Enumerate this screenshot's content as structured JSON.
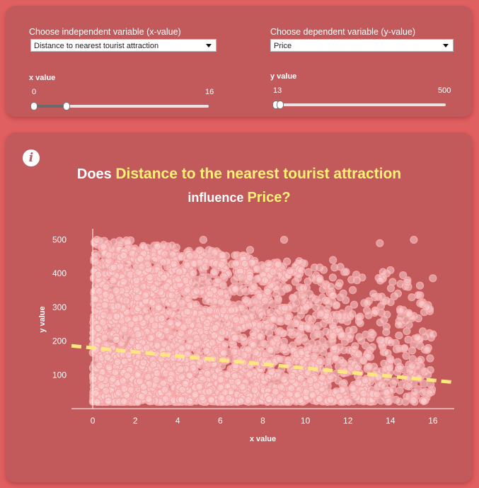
{
  "controls": {
    "x_select_label": "Choose independent variable (x-value)",
    "x_select_value": "Distance to nearest tourist attraction",
    "y_select_label": "Choose dependent variable (y-value)",
    "y_select_value": "Price",
    "x_slider": {
      "title": "x value",
      "min": "0",
      "max": "16",
      "range_min": 0,
      "range_max": 16,
      "low": 0,
      "high": 3
    },
    "y_slider": {
      "title": "y value",
      "min": "13",
      "max": "500",
      "range_min": 13,
      "range_max": 500,
      "low": 13,
      "high": 13
    }
  },
  "chart": {
    "title_prefix": "Does",
    "title_x": "Distance to the nearest tourist attraction",
    "title_mid": "influence",
    "title_y": "Price?"
  },
  "colors": {
    "page_bg": "#e05f60",
    "card_bg": "#c25a5b",
    "highlight": "#fff176",
    "points": "#f7a6a8",
    "trend": "#ffe680"
  },
  "icons": {
    "info": "info-icon"
  },
  "chart_data": {
    "type": "scatter",
    "title": "Does Distance to the nearest tourist attraction influence Price?",
    "xlabel": "x value",
    "ylabel": "y value",
    "xlim": [
      -1,
      17
    ],
    "ylim": [
      0,
      520
    ],
    "x_ticks": [
      0,
      2,
      4,
      6,
      8,
      10,
      12,
      14,
      16
    ],
    "y_ticks": [
      100,
      200,
      300,
      400,
      500
    ],
    "point_density": [
      {
        "x_range": [
          0,
          2
        ],
        "density": 1.0
      },
      {
        "x_range": [
          2,
          4
        ],
        "density": 0.85
      },
      {
        "x_range": [
          4,
          6
        ],
        "density": 0.7
      },
      {
        "x_range": [
          6,
          8
        ],
        "density": 0.55
      },
      {
        "x_range": [
          8,
          10
        ],
        "density": 0.4
      },
      {
        "x_range": [
          10,
          12
        ],
        "density": 0.3
      },
      {
        "x_range": [
          12,
          14
        ],
        "density": 0.2
      },
      {
        "x_range": [
          14,
          16
        ],
        "density": 0.14
      }
    ],
    "sample_points": [
      [
        0.2,
        500
      ],
      [
        0.5,
        480
      ],
      [
        1.1,
        350
      ],
      [
        1.8,
        250
      ],
      [
        2.3,
        420
      ],
      [
        3.1,
        300
      ],
      [
        3.8,
        150
      ],
      [
        4.5,
        260
      ],
      [
        5.2,
        500
      ],
      [
        5.9,
        380
      ],
      [
        6.7,
        210
      ],
      [
        7.4,
        470
      ],
      [
        8.1,
        320
      ],
      [
        9.0,
        500
      ],
      [
        9.8,
        410
      ],
      [
        10.5,
        300
      ],
      [
        11.3,
        440
      ],
      [
        12.2,
        280
      ],
      [
        13.2,
        340
      ],
      [
        13.5,
        490
      ],
      [
        14.0,
        410
      ],
      [
        14.8,
        380
      ],
      [
        15.1,
        500
      ],
      [
        15.7,
        300
      ],
      [
        16.0,
        220
      ]
    ],
    "trend_line": {
      "x": [
        -1,
        17
      ],
      "y": [
        186,
        78
      ]
    }
  }
}
